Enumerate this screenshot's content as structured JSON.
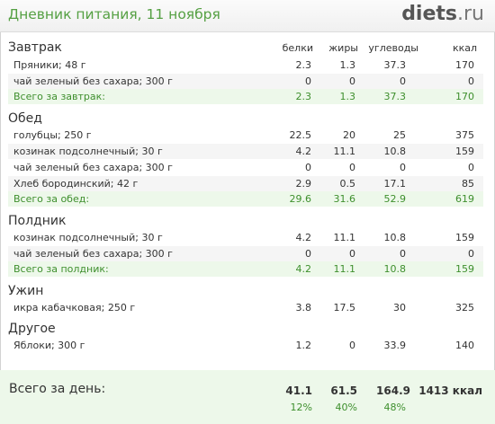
{
  "header": {
    "title": "Дневник питания, 11 ноября",
    "logo_main": "diets",
    "logo_suffix": ".ru"
  },
  "columns": {
    "protein": "белки",
    "fat": "жиры",
    "carbs": "углеводы",
    "kcal": "ккал"
  },
  "meals": {
    "breakfast": {
      "title": "Завтрак",
      "rows": [
        {
          "name": "Пряники; 48 г",
          "p": "2.3",
          "f": "1.3",
          "c": "37.3",
          "k": "170"
        },
        {
          "name": "чай зеленый без сахара; 300 г",
          "p": "0",
          "f": "0",
          "c": "0",
          "k": "0"
        }
      ],
      "total": {
        "name": "Всего за завтрак:",
        "p": "2.3",
        "f": "1.3",
        "c": "37.3",
        "k": "170"
      }
    },
    "lunch": {
      "title": "Обед",
      "rows": [
        {
          "name": "голубцы; 250 г",
          "p": "22.5",
          "f": "20",
          "c": "25",
          "k": "375"
        },
        {
          "name": "козинак подсолнечный; 30 г",
          "p": "4.2",
          "f": "11.1",
          "c": "10.8",
          "k": "159"
        },
        {
          "name": "чай зеленый без сахара; 300 г",
          "p": "0",
          "f": "0",
          "c": "0",
          "k": "0"
        },
        {
          "name": "Хлеб бородинский; 42 г",
          "p": "2.9",
          "f": "0.5",
          "c": "17.1",
          "k": "85"
        }
      ],
      "total": {
        "name": "Всего за обед:",
        "p": "29.6",
        "f": "31.6",
        "c": "52.9",
        "k": "619"
      }
    },
    "snack": {
      "title": "Полдник",
      "rows": [
        {
          "name": "козинак подсолнечный; 30 г",
          "p": "4.2",
          "f": "11.1",
          "c": "10.8",
          "k": "159"
        },
        {
          "name": "чай зеленый без сахара; 300 г",
          "p": "0",
          "f": "0",
          "c": "0",
          "k": "0"
        }
      ],
      "total": {
        "name": "Всего за полдник:",
        "p": "4.2",
        "f": "11.1",
        "c": "10.8",
        "k": "159"
      }
    },
    "dinner": {
      "title": "Ужин",
      "rows": [
        {
          "name": "икра кабачковая; 250 г",
          "p": "3.8",
          "f": "17.5",
          "c": "30",
          "k": "325"
        }
      ]
    },
    "other": {
      "title": "Другое",
      "rows": [
        {
          "name": "Яблоки; 300 г",
          "p": "1.2",
          "f": "0",
          "c": "33.9",
          "k": "140"
        }
      ]
    }
  },
  "day_total": {
    "label": "Всего за день:",
    "p": "41.1",
    "f": "61.5",
    "c": "164.9",
    "k": "1413 ккал",
    "p_pct": "12%",
    "f_pct": "40%",
    "c_pct": "48%"
  }
}
